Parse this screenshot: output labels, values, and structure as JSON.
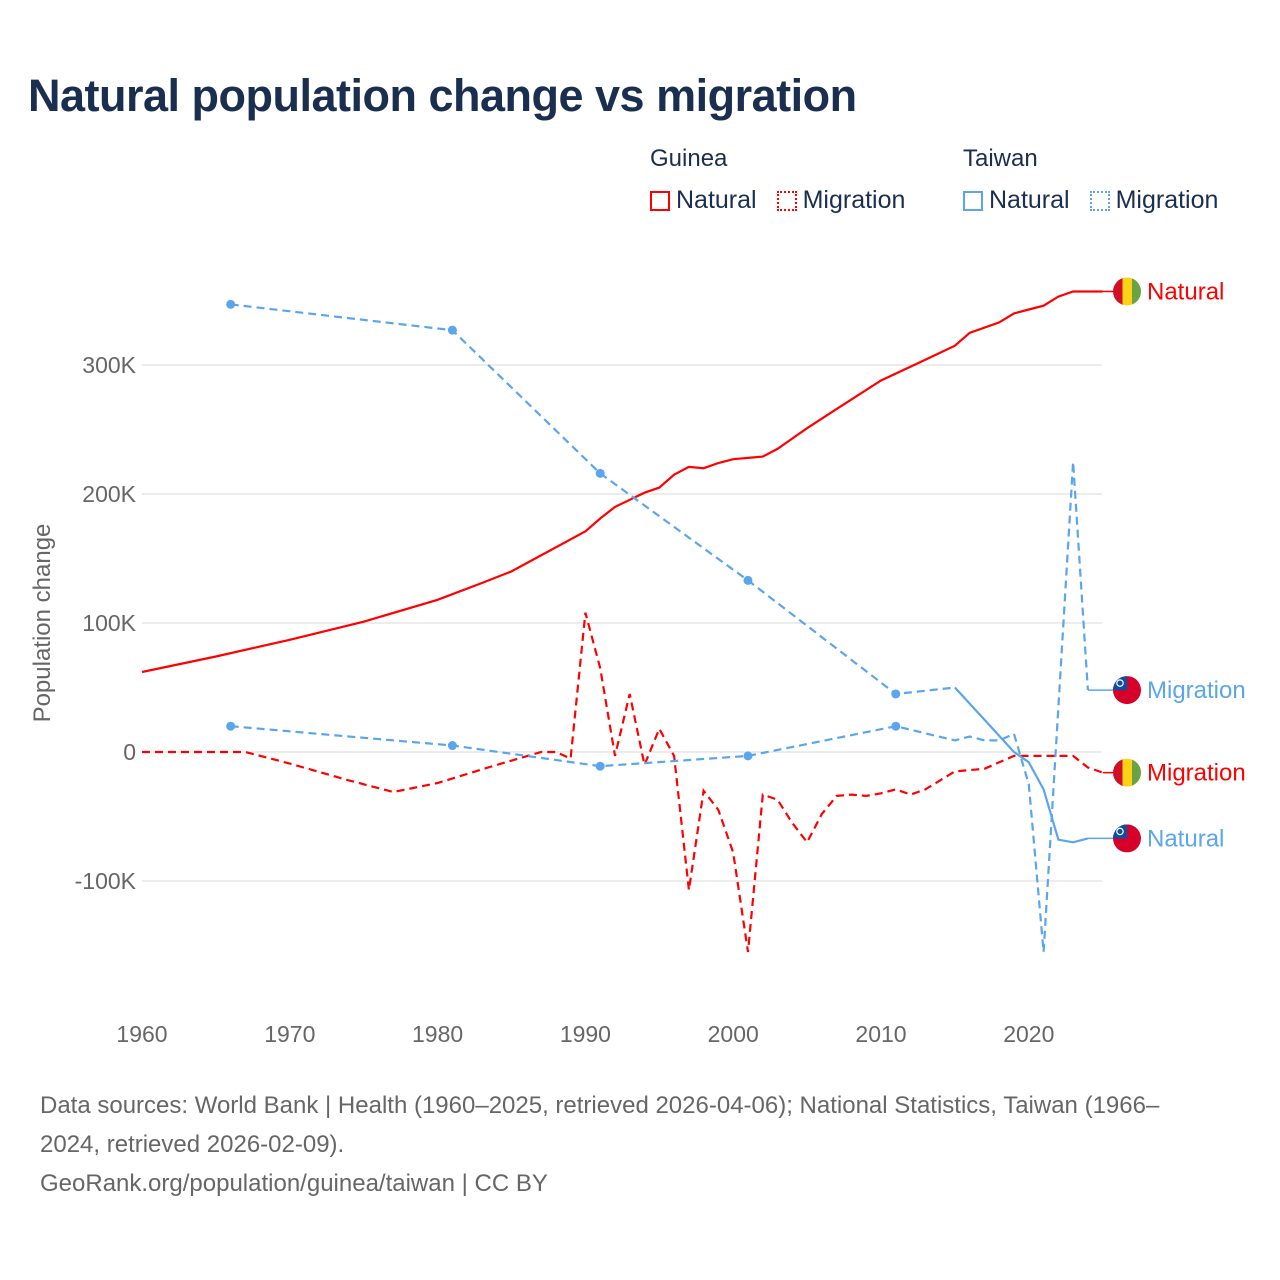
{
  "title": "Natural population change vs migration",
  "legend": {
    "groups": [
      {
        "name": "Guinea",
        "items": [
          {
            "label": "Natural",
            "style": "solid"
          },
          {
            "label": "Migration",
            "style": "dotted"
          }
        ],
        "color": "#ff0000"
      },
      {
        "name": "Taiwan",
        "items": [
          {
            "label": "Natural",
            "style": "solid"
          },
          {
            "label": "Migration",
            "style": "dotted"
          }
        ],
        "color": "#5aa5ec"
      }
    ]
  },
  "footer": {
    "line1": "Data sources: World Bank | Health (1960–2025, retrieved 2026-04-06); National Statistics, Taiwan (1966–",
    "line2": "2024, retrieved 2026-02-09).",
    "line3": "GeoRank.org/population/guinea/taiwan | CC BY"
  },
  "chart_data": {
    "type": "line",
    "title": "Natural population change vs migration",
    "xlabel": "",
    "ylabel": "Population change",
    "xlim": [
      1960,
      2025
    ],
    "ylim": [
      -185000,
      395000
    ],
    "x_ticks": [
      1960,
      1970,
      1980,
      1990,
      2000,
      2010,
      2020
    ],
    "x_tick_labels": [
      "1960",
      "1970",
      "1980",
      "1990",
      "2000",
      "2010",
      "2020"
    ],
    "y_ticks": [
      -100000,
      0,
      100000,
      200000,
      300000
    ],
    "y_tick_labels": [
      "-100K",
      "0",
      "100K",
      "200K",
      "300K"
    ],
    "grid": true,
    "legend_position": "top-right",
    "series": [
      {
        "name": "Guinea Natural",
        "end_label": "Natural",
        "country": "Guinea",
        "color": "#ff0000",
        "dash": "solid",
        "x": [
          1960,
          1965,
          1970,
          1975,
          1980,
          1983,
          1985,
          1990,
          1991,
          1992,
          1994,
          1995,
          1996,
          1997,
          1998,
          1999,
          2000,
          2001,
          2002,
          2003,
          2004,
          2005,
          2007,
          2010,
          2013,
          2015,
          2016,
          2018,
          2019,
          2020,
          2021,
          2022,
          2023,
          2024,
          2025
        ],
        "y": [
          62000,
          74000,
          87000,
          101000,
          118000,
          131000,
          140000,
          171000,
          181000,
          190000,
          201000,
          205000,
          215000,
          221000,
          220000,
          224000,
          227000,
          228000,
          229000,
          235000,
          243000,
          251000,
          266000,
          288000,
          304000,
          315000,
          325000,
          333000,
          340000,
          343000,
          346000,
          353000,
          357000,
          357000,
          357000
        ]
      },
      {
        "name": "Guinea Migration",
        "end_label": "Migration",
        "country": "Guinea",
        "color": "#ff0000",
        "dash": "dashed",
        "x": [
          1960,
          1967,
          1970,
          1974,
          1977,
          1980,
          1984,
          1987,
          1988,
          1989,
          1990,
          1991,
          1992,
          1993,
          1994,
          1995,
          1996,
          1997,
          1998,
          1999,
          2000,
          2001,
          2002,
          2003,
          2004,
          2005,
          2006,
          2007,
          2008,
          2009,
          2010,
          2011,
          2012,
          2013,
          2014,
          2015,
          2016,
          2017,
          2018,
          2019,
          2020,
          2021,
          2022,
          2023,
          2024,
          2025
        ],
        "y": [
          0,
          0,
          -9000,
          -22000,
          -31000,
          -24000,
          -10000,
          0,
          0,
          -5000,
          108000,
          65000,
          -3000,
          45000,
          -10000,
          18000,
          -3000,
          -107000,
          -30000,
          -45000,
          -78000,
          -155000,
          -33000,
          -37000,
          -55000,
          -70000,
          -48000,
          -34000,
          -33000,
          -34000,
          -32000,
          -29000,
          -33000,
          -29000,
          -22000,
          -15000,
          -14000,
          -13000,
          -8000,
          -3000,
          -3000,
          -3000,
          -3000,
          -3000,
          -12000,
          -16000
        ]
      },
      {
        "name": "Taiwan Natural",
        "end_label": "Natural",
        "country": "Taiwan",
        "color": "#5aa5ec",
        "dash": "solid",
        "interpolated_until": 2015,
        "markers": [
          1966,
          1981,
          1991,
          2001,
          2011
        ],
        "x": [
          1966,
          1981,
          1991,
          2001,
          2011,
          2015,
          2017,
          2019,
          2020,
          2021,
          2022,
          2023,
          2024
        ],
        "y": [
          347000,
          327000,
          216000,
          133000,
          45000,
          50000,
          25000,
          0,
          -8000,
          -29000,
          -68000,
          -70000,
          -67000
        ]
      },
      {
        "name": "Taiwan Migration",
        "end_label": "Migration",
        "country": "Taiwan",
        "color": "#5aa5ec",
        "dash": "dashed",
        "markers": [
          1966,
          1981,
          1991,
          2001,
          2011
        ],
        "x": [
          1966,
          1981,
          1991,
          2001,
          2011,
          2015,
          2016,
          2017,
          2018,
          2019,
          2020,
          2021,
          2022,
          2023,
          2024
        ],
        "y": [
          20000,
          5000,
          -11000,
          -3000,
          20000,
          9000,
          12000,
          9000,
          9000,
          14000,
          -25000,
          -155000,
          35000,
          225000,
          48000
        ]
      }
    ]
  }
}
